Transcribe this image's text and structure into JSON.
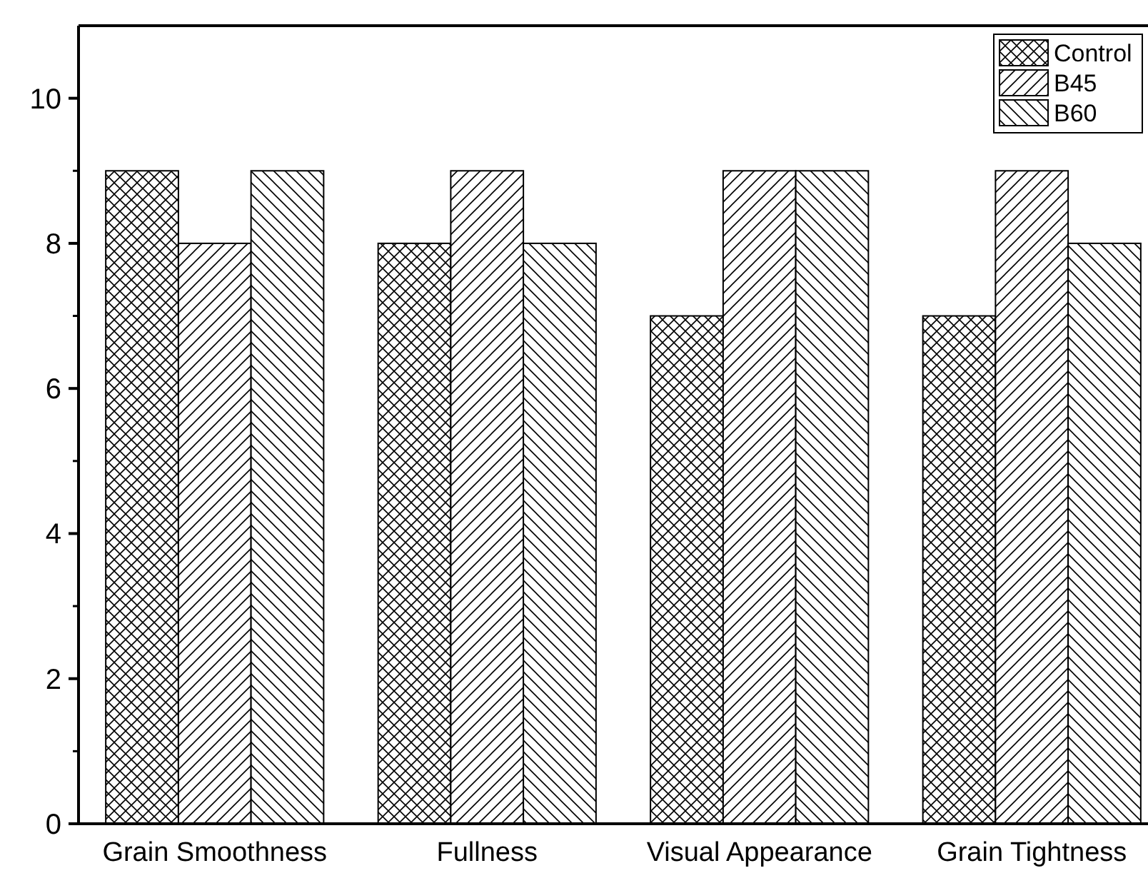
{
  "chart_data": {
    "type": "bar",
    "categories": [
      "Grain Smoothness",
      "Fullness",
      "Visual Appearance",
      "Grain Tightness"
    ],
    "series": [
      {
        "name": "Control",
        "color": "#000000",
        "values": [
          9,
          8,
          7,
          7
        ]
      },
      {
        "name": "B45",
        "color": "#000000",
        "values": [
          8,
          9,
          9,
          9
        ]
      },
      {
        "name": "B60",
        "color": "#000000",
        "values": [
          9,
          8,
          9,
          8
        ]
      }
    ],
    "ylim": [
      0,
      11
    ],
    "yticks": [
      0,
      2,
      4,
      6,
      8,
      10
    ],
    "grid": false,
    "legend": "top right"
  }
}
